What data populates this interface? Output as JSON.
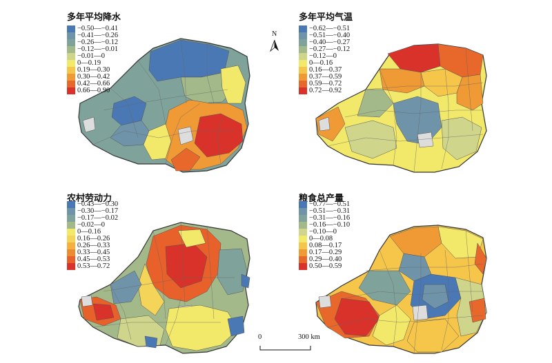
{
  "panels": [
    {
      "title": "多年平均降水",
      "legend": [
        {
          "label": "−0.50—−0.41",
          "color": "#4a78b5"
        },
        {
          "label": "−0.41—−0.26",
          "color": "#6f93a8"
        },
        {
          "label": "−0.26—−0.12",
          "color": "#7fa29a"
        },
        {
          "label": "−0.12—−0.01",
          "color": "#a3b98a"
        },
        {
          "label": "−0.01—0",
          "color": "#cfd58a"
        },
        {
          "label": "0—0.19",
          "color": "#f2e86a"
        },
        {
          "label": "0.19—0.30",
          "color": "#f5c64a"
        },
        {
          "label": "0.30—0.42",
          "color": "#f09a35"
        },
        {
          "label": "0.42—0.66",
          "color": "#e8672a"
        },
        {
          "label": "0.66—0.90",
          "color": "#d8322a"
        }
      ]
    },
    {
      "title": "多年平均气温",
      "legend": [
        {
          "label": "−0.62—−0.51",
          "color": "#4a78b5"
        },
        {
          "label": "−0.51—−0.40",
          "color": "#6f93a8"
        },
        {
          "label": "−0.40—−0.27",
          "color": "#7fa29a"
        },
        {
          "label": "−0.27—−0.12",
          "color": "#a3b98a"
        },
        {
          "label": "−0.12—0",
          "color": "#cfd58a"
        },
        {
          "label": "0—0.16",
          "color": "#f2e86a"
        },
        {
          "label": "0.16—0.37",
          "color": "#f5c64a"
        },
        {
          "label": "0.37—0.59",
          "color": "#f09a35"
        },
        {
          "label": "0.59—0.72",
          "color": "#e8672a"
        },
        {
          "label": "0.72—0.92",
          "color": "#d8322a"
        }
      ]
    },
    {
      "title": "农村劳动力",
      "legend": [
        {
          "label": "−0.43—−0.30",
          "color": "#4a78b5"
        },
        {
          "label": "−0.30—−0.17",
          "color": "#6f93a8"
        },
        {
          "label": "−0.17—−0.02",
          "color": "#7fa29a"
        },
        {
          "label": "−0.02—0",
          "color": "#a3b98a"
        },
        {
          "label": "0—0.16",
          "color": "#f2e86a"
        },
        {
          "label": "0.16—0.26",
          "color": "#f5d45a"
        },
        {
          "label": "0.26—0.33",
          "color": "#f5b040"
        },
        {
          "label": "0.33—0.45",
          "color": "#ee8a32"
        },
        {
          "label": "0.45—0.53",
          "color": "#e8602a"
        },
        {
          "label": "0.53—0.72",
          "color": "#d8322a"
        }
      ]
    },
    {
      "title": "粮食总产量",
      "legend": [
        {
          "label": "−0.77—−0.51",
          "color": "#4a78b5"
        },
        {
          "label": "−0.51—−0.31",
          "color": "#6f93a8"
        },
        {
          "label": "−0.31—−0.16",
          "color": "#7fa29a"
        },
        {
          "label": "−0.16—−0.10",
          "color": "#a3b98a"
        },
        {
          "label": "−0.10—0",
          "color": "#cfd58a"
        },
        {
          "label": "0—0.08",
          "color": "#f2e86a"
        },
        {
          "label": "0.08—0.17",
          "color": "#f5c64a"
        },
        {
          "label": "0.17—0.29",
          "color": "#f09a35"
        },
        {
          "label": "0.29—0.40",
          "color": "#e8672a"
        },
        {
          "label": "0.50—0.59",
          "color": "#d8322a"
        }
      ]
    }
  ],
  "north_arrow": {
    "letter": "N"
  },
  "scale_bar": {
    "start": "0",
    "end": "300 km"
  },
  "colors": {
    "boundary": "#555555",
    "nodata": "#dddddd",
    "outline": "#333333"
  }
}
